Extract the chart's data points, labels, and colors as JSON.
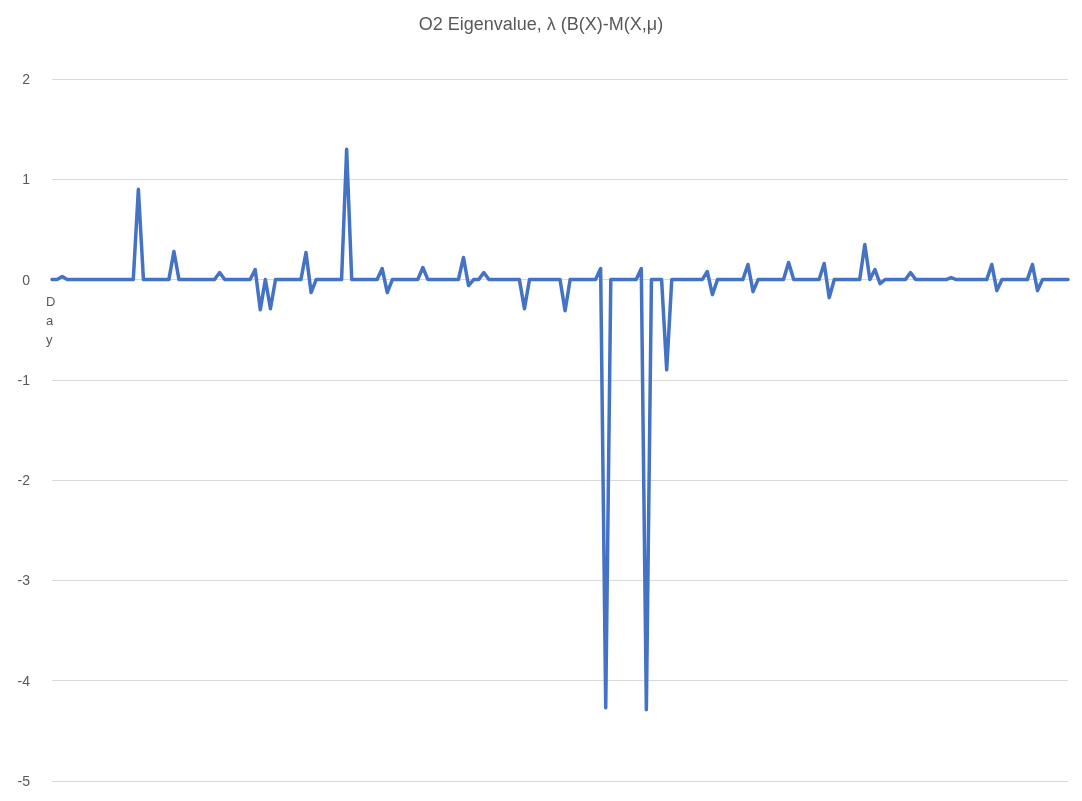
{
  "chart_data": {
    "type": "line",
    "title": "O2 Eigenvalue, λ (B(X)-M(X,μ)",
    "xlabel": "Day",
    "categories": [
      null,
      null,
      null,
      null,
      null,
      null,
      null,
      null,
      null,
      null,
      null,
      null,
      null,
      null,
      null,
      null,
      null,
      null,
      null,
      null,
      null,
      null,
      null,
      null,
      null,
      null,
      null,
      null,
      null,
      null,
      null,
      null,
      null,
      null,
      null,
      null,
      null,
      null,
      null,
      null,
      null,
      null,
      null,
      null,
      null,
      null,
      null,
      null,
      null,
      null,
      null,
      null,
      null,
      null,
      null,
      null,
      null,
      null,
      null,
      null,
      null,
      null,
      null,
      null,
      null,
      null,
      null,
      null,
      null,
      null,
      null,
      null,
      null,
      null,
      null,
      null,
      null,
      null,
      null,
      null,
      null,
      null,
      null,
      null,
      null,
      null,
      null,
      null,
      null,
      null,
      null,
      null,
      null,
      null,
      null,
      null,
      null,
      null,
      null,
      null,
      null,
      null,
      null,
      null,
      null,
      null,
      null,
      null,
      null,
      null,
      null,
      null,
      null,
      null,
      null,
      null,
      null,
      null,
      null,
      null,
      null,
      null,
      null,
      null,
      null,
      null,
      null,
      null,
      null,
      null,
      null,
      null,
      null,
      null,
      null,
      null,
      null,
      null,
      null,
      null,
      null,
      null,
      null,
      null,
      null,
      null,
      null,
      null,
      null,
      null,
      null,
      null,
      null,
      null,
      null,
      null,
      null,
      null,
      null,
      null,
      null,
      null,
      null,
      null,
      null,
      null,
      null,
      null,
      null,
      null,
      null,
      null,
      null,
      null,
      null,
      null,
      null,
      null,
      null,
      null,
      null,
      null,
      null,
      null,
      null,
      null,
      null,
      null,
      null,
      null,
      null,
      null,
      null,
      null,
      null,
      null,
      null,
      null,
      null,
      null,
      null
    ],
    "series": [
      {
        "color": "#4472c4",
        "values": [
          0,
          0,
          0.03,
          0,
          0,
          0,
          0,
          0,
          0,
          0,
          0,
          0,
          0,
          0,
          0,
          0,
          0,
          0.9,
          0,
          0,
          0,
          0,
          0,
          0,
          0.28,
          0,
          0,
          0,
          0,
          0,
          0,
          0,
          0,
          0.07,
          0,
          0,
          0,
          0,
          0,
          0,
          0.1,
          -0.3,
          0,
          -0.29,
          0,
          0,
          0,
          0,
          0,
          0,
          0.27,
          -0.13,
          0,
          0,
          0,
          0,
          0,
          0,
          1.3,
          0,
          0,
          0,
          0,
          0,
          0,
          0.11,
          -0.13,
          0,
          0,
          0,
          0,
          0,
          0,
          0.12,
          0,
          0,
          0,
          0,
          0,
          0,
          0,
          0.22,
          -0.06,
          0,
          0,
          0.07,
          0,
          0,
          0,
          0,
          0,
          0,
          0,
          -0.29,
          0,
          0,
          0,
          0,
          0,
          0,
          0,
          -0.31,
          0,
          0,
          0,
          0,
          0,
          0,
          0.11,
          -4.27,
          0,
          0,
          0,
          0,
          0,
          0,
          0.11,
          -4.29,
          0,
          0,
          0,
          -0.9,
          0,
          0,
          0,
          0,
          0,
          0,
          0,
          0.08,
          -0.15,
          0,
          0,
          0,
          0,
          0,
          0,
          0.15,
          -0.12,
          0,
          0,
          0,
          0,
          0,
          0,
          0.17,
          0,
          0,
          0,
          0,
          0,
          0,
          0.16,
          -0.18,
          0,
          0,
          0,
          0,
          0,
          0,
          0.35,
          0,
          0.1,
          -0.04,
          0,
          0,
          0,
          0,
          0,
          0.07,
          0,
          0,
          0,
          0,
          0,
          0,
          0,
          0.02,
          0,
          0,
          0,
          0,
          0,
          0,
          0,
          0.15,
          -0.11,
          0,
          0,
          0,
          0,
          0,
          0,
          0.15,
          -0.11,
          0,
          0,
          0,
          0,
          0,
          0
        ]
      }
    ],
    "ylim": [
      -5,
      2
    ],
    "yticks": [
      -5,
      -4,
      -3,
      -2,
      -1,
      0,
      1,
      2
    ],
    "grid": "y",
    "line_style": "solid",
    "tick_labels": "y"
  }
}
